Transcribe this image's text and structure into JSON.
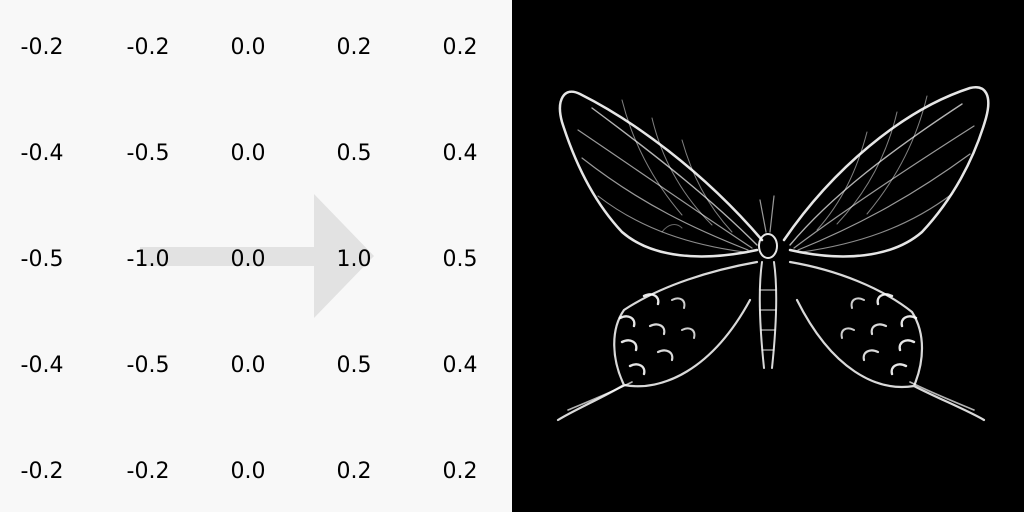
{
  "kernel": {
    "rows": [
      [
        "-0.2",
        "-0.2",
        "0.0",
        "0.2",
        "0.2"
      ],
      [
        "-0.4",
        "-0.5",
        "0.0",
        "0.5",
        "0.4"
      ],
      [
        "-0.5",
        "-1.0",
        "0.0",
        "1.0",
        "0.5"
      ],
      [
        "-0.4",
        "-0.5",
        "0.0",
        "0.5",
        "0.4"
      ],
      [
        "-0.2",
        "-0.2",
        "0.0",
        "0.2",
        "0.2"
      ]
    ]
  },
  "colors": {
    "kernel_bg": "#f8f8f8",
    "arrow": "#e2e2e2",
    "image_bg": "#000000",
    "edge": "#ffffff"
  },
  "icons": {
    "arrow": "right-arrow-icon",
    "image": "butterfly-edge-image"
  }
}
